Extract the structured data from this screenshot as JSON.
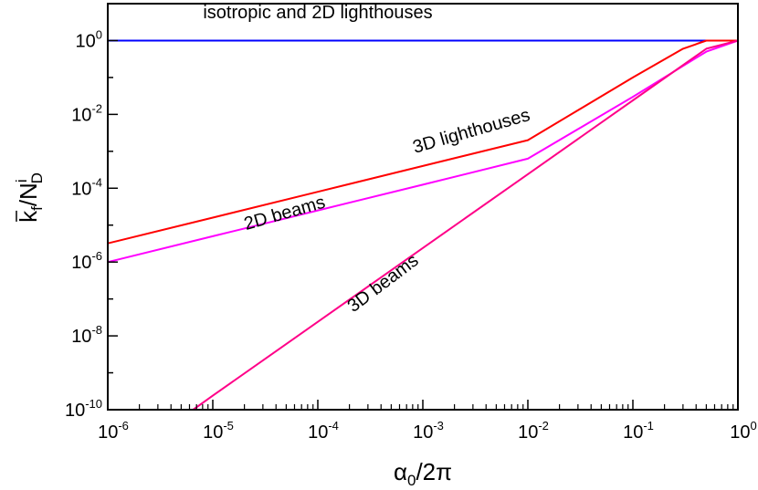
{
  "chart_data": {
    "type": "line",
    "title": "",
    "xlabel": {
      "base": "α",
      "sub": "0",
      "rest": "/2π"
    },
    "ylabel": {
      "base": "k",
      "sub": "f",
      "mid": "/N",
      "sup": "i",
      "sub2": "D"
    },
    "xscale": "log",
    "yscale": "log",
    "xlim": [
      1e-06,
      1
    ],
    "ylim": [
      1e-10,
      10
    ],
    "x_ticks": [
      {
        "base": "10",
        "exp": "-6"
      },
      {
        "base": "10",
        "exp": "-5"
      },
      {
        "base": "10",
        "exp": "-4"
      },
      {
        "base": "10",
        "exp": "-3"
      },
      {
        "base": "10",
        "exp": "-2"
      },
      {
        "base": "10",
        "exp": "-1"
      },
      {
        "base": "10",
        "exp": "0"
      }
    ],
    "y_ticks": [
      {
        "base": "10",
        "exp": "-10"
      },
      {
        "base": "10",
        "exp": "-8"
      },
      {
        "base": "10",
        "exp": "-6"
      },
      {
        "base": "10",
        "exp": "-4"
      },
      {
        "base": "10",
        "exp": "-2"
      },
      {
        "base": "10",
        "exp": "0"
      }
    ],
    "grid": false,
    "series": [
      {
        "color": "#0000ff",
        "x": [
          1e-06,
          1
        ],
        "y": [
          1,
          1
        ]
      },
      {
        "color": "#ff0000",
        "x": [
          1e-06,
          1e-05,
          0.0001,
          0.001,
          0.01,
          0.1,
          0.3,
          0.5,
          1
        ],
        "y": [
          3.2e-06,
          1.6e-05,
          8e-05,
          0.0004,
          0.002,
          0.1,
          0.6,
          1,
          1
        ]
      },
      {
        "color": "#ff00ff",
        "x": [
          1e-06,
          1e-05,
          0.0001,
          0.001,
          0.01,
          0.1,
          0.5,
          1
        ],
        "y": [
          1e-06,
          5e-06,
          2.5e-05,
          0.000125,
          0.00063,
          0.03,
          0.5,
          1
        ]
      },
      {
        "color": "#ff0088",
        "x": [
          6.5e-06,
          1e-05,
          0.0001,
          0.001,
          0.01,
          0.1,
          0.5,
          1
        ],
        "y": [
          1e-10,
          2.4e-10,
          2.4e-08,
          2.4e-06,
          0.00024,
          0.024,
          0.6,
          1
        ]
      }
    ],
    "annotations": [
      {
        "text": "isotropic and 2D lighthouses",
        "x": 0.0001,
        "y": 4,
        "rotate": 0
      },
      {
        "text": "3D lighthouses",
        "x": 0.003,
        "y": 0.0025,
        "rotate": -16
      },
      {
        "text": "2D beams",
        "x": 5e-05,
        "y": 1.5e-05,
        "rotate": -16
      },
      {
        "text": "3D beams",
        "x": 0.00045,
        "y": 2e-07,
        "rotate": -37
      }
    ]
  }
}
